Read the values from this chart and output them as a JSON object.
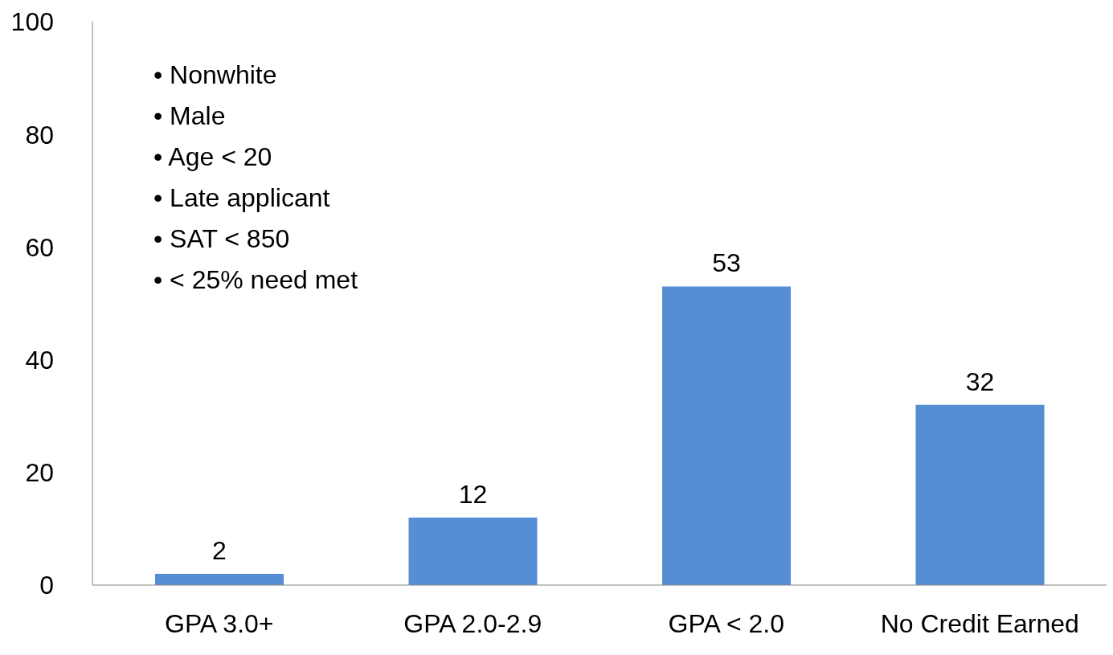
{
  "chart_data": {
    "type": "bar",
    "categories": [
      "GPA 3.0+",
      "GPA 2.0-2.9",
      "GPA < 2.0",
      "No Credit Earned"
    ],
    "values": [
      2,
      12,
      53,
      32
    ],
    "color": "#558ed5",
    "ylim": [
      0,
      100
    ],
    "yticks": [
      0,
      20,
      40,
      60,
      80,
      100
    ],
    "grid": false,
    "data_labels": true,
    "annotations": [
      "• Nonwhite",
      "• Male",
      "• Age < 20",
      "• Late applicant",
      "• SAT < 850",
      "• < 25% need met"
    ]
  }
}
